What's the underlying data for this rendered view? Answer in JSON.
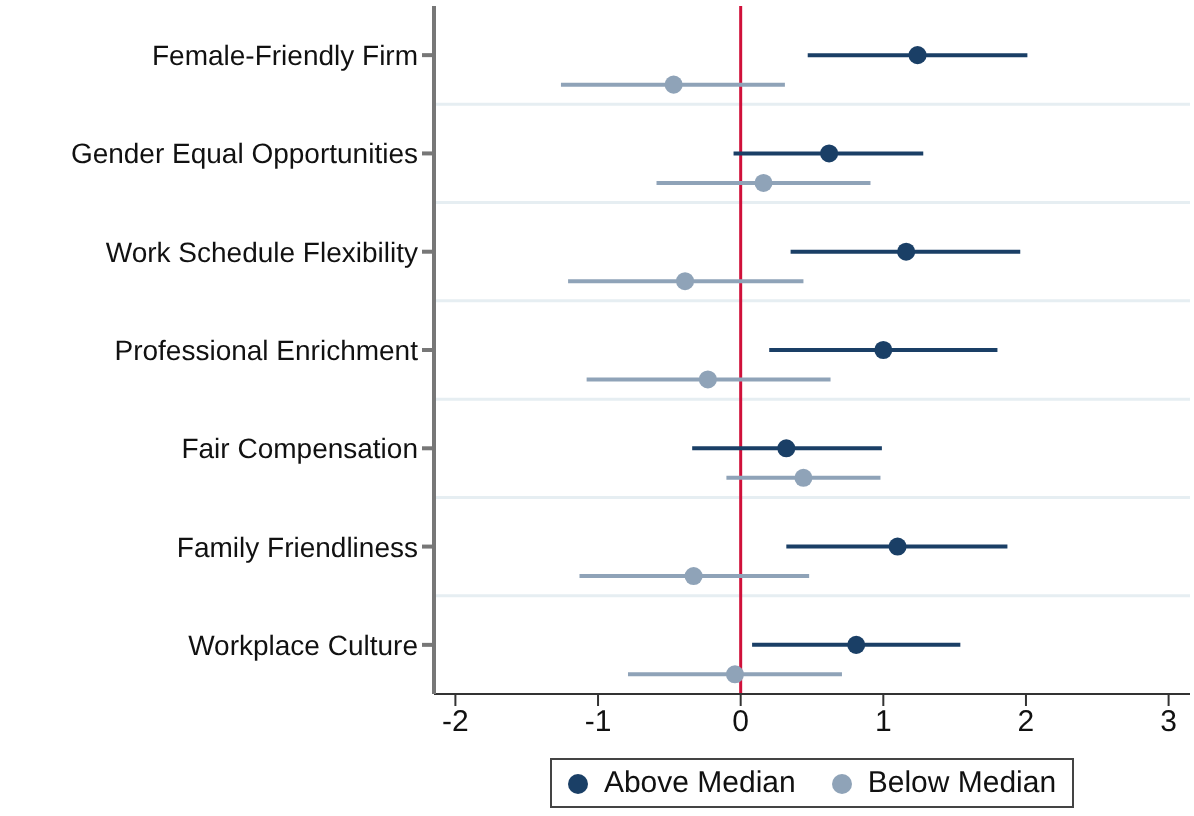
{
  "chart_data": {
    "type": "scatter",
    "orientation": "horizontal",
    "categories": [
      "Female-Friendly Firm",
      "Gender Equal Opportunities",
      "Work Schedule Flexibility",
      "Professional Enrichment",
      "Fair Compensation",
      "Family Friendliness",
      "Workplace Culture"
    ],
    "series": [
      {
        "name": "Above Median",
        "color": "#1a3f66",
        "values": [
          1.24,
          0.62,
          1.16,
          1.0,
          0.32,
          1.1,
          0.81
        ],
        "errors": [
          [
            0.47,
            2.01
          ],
          [
            -0.05,
            1.28
          ],
          [
            0.35,
            1.96
          ],
          [
            0.2,
            1.8
          ],
          [
            -0.34,
            0.99
          ],
          [
            0.32,
            1.87
          ],
          [
            0.08,
            1.54
          ]
        ]
      },
      {
        "name": "Below Median",
        "color": "#8fa3b8",
        "values": [
          -0.47,
          0.16,
          -0.39,
          -0.23,
          0.44,
          -0.33,
          -0.04
        ],
        "errors": [
          [
            -1.26,
            0.31
          ],
          [
            -0.59,
            0.91
          ],
          [
            -1.21,
            0.44
          ],
          [
            -1.08,
            0.63
          ],
          [
            -0.1,
            0.98
          ],
          [
            -1.13,
            0.48
          ],
          [
            -0.79,
            0.71
          ]
        ]
      }
    ],
    "xlim": [
      -2.15,
      3.15
    ],
    "xticks": [
      -2,
      -1,
      0,
      1,
      2,
      3
    ],
    "ref_lines": [
      {
        "axis": "x",
        "value": 0,
        "color": "#d0103a"
      }
    ],
    "grid": "y",
    "legend": "bottom",
    "marker": "circle"
  }
}
